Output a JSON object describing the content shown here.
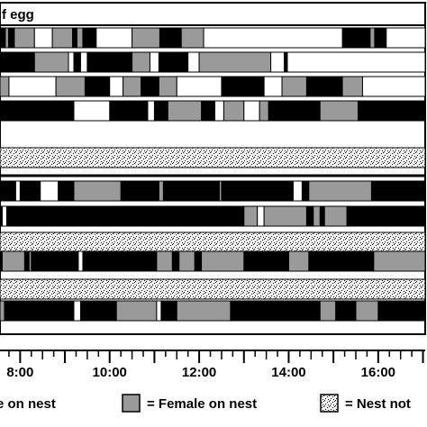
{
  "header_text": "f egg",
  "legend": {
    "male_label": "e on nest",
    "female_label": "= Female on nest",
    "empty_label": "= Nest not"
  },
  "colors": {
    "male": "#000000",
    "female": "#9a9a9a",
    "empty": "#dedede",
    "unattended": "#ffffff"
  },
  "chart_data": {
    "type": "timeline",
    "title": "",
    "x_unit": "hour",
    "xlim": [
      7.55,
      17.05
    ],
    "x_ticks": [
      {
        "hour": 8,
        "label": "8:00"
      },
      {
        "hour": 10,
        "label": "10:00"
      },
      {
        "hour": 12,
        "label": "12:00"
      },
      {
        "hour": 14,
        "label": "14:00"
      },
      {
        "hour": 16,
        "label": "16:00"
      }
    ],
    "states": [
      "male",
      "female",
      "unattended",
      "empty"
    ],
    "rows": [
      {
        "segments": [
          [
            "male",
            7.55,
            7.67
          ],
          [
            "female",
            7.67,
            7.74
          ],
          [
            "male",
            7.74,
            7.8
          ],
          [
            "female",
            7.8,
            7.82
          ],
          [
            "male",
            7.82,
            7.87
          ],
          [
            "female",
            7.87,
            8.32
          ],
          [
            "unattended",
            8.32,
            8.72
          ],
          [
            "female",
            8.72,
            9.17
          ],
          [
            "male",
            9.17,
            9.27
          ],
          [
            "female",
            9.27,
            9.4
          ],
          [
            "male",
            9.4,
            9.7
          ],
          [
            "unattended",
            9.7,
            10.5
          ],
          [
            "female",
            10.5,
            11.12
          ],
          [
            "male",
            11.12,
            11.6
          ],
          [
            "female",
            11.6,
            12.1
          ],
          [
            "unattended",
            12.1,
            15.2
          ],
          [
            "male",
            15.2,
            15.82
          ],
          [
            "female",
            15.82,
            15.92
          ],
          [
            "male",
            15.92,
            16.18
          ],
          [
            "unattended",
            16.18,
            17.05
          ]
        ]
      },
      {
        "segments": [
          [
            "male",
            7.55,
            8.32
          ],
          [
            "female",
            8.32,
            9.08
          ],
          [
            "unattended",
            9.08,
            9.2
          ],
          [
            "male",
            9.2,
            9.35
          ],
          [
            "unattended",
            9.35,
            9.5
          ],
          [
            "male",
            9.5,
            10.5
          ],
          [
            "female",
            10.5,
            10.9
          ],
          [
            "unattended",
            10.9,
            11.1
          ],
          [
            "male",
            11.1,
            11.75
          ],
          [
            "unattended",
            11.75,
            12.0
          ],
          [
            "female",
            12.0,
            13.6
          ],
          [
            "unattended",
            13.6,
            13.9
          ],
          [
            "male",
            13.9,
            13.97
          ],
          [
            "unattended",
            13.97,
            17.05
          ]
        ]
      },
      {
        "segments": [
          [
            "female",
            7.55,
            7.75
          ],
          [
            "unattended",
            7.75,
            8.8
          ],
          [
            "female",
            8.8,
            9.45
          ],
          [
            "male",
            9.45,
            10.0
          ],
          [
            "unattended",
            10.0,
            10.3
          ],
          [
            "female",
            10.3,
            10.7
          ],
          [
            "male",
            10.7,
            11.1
          ],
          [
            "female",
            11.1,
            11.5
          ],
          [
            "unattended",
            11.5,
            12.5
          ],
          [
            "male",
            12.5,
            13.45
          ],
          [
            "unattended",
            13.45,
            13.85
          ],
          [
            "female",
            13.85,
            14.4
          ],
          [
            "male",
            14.4,
            15.2
          ],
          [
            "female",
            15.2,
            15.65
          ],
          [
            "unattended",
            15.65,
            17.05
          ]
        ]
      },
      {
        "segments": [
          [
            "male",
            7.55,
            9.2
          ],
          [
            "unattended",
            9.2,
            10.0
          ],
          [
            "male",
            10.0,
            10.85
          ],
          [
            "unattended",
            10.85,
            11.0
          ],
          [
            "male",
            11.0,
            11.3
          ],
          [
            "female",
            11.3,
            12.05
          ],
          [
            "male",
            12.05,
            12.35
          ],
          [
            "unattended",
            12.35,
            12.55
          ],
          [
            "female",
            12.55,
            13.0
          ],
          [
            "unattended",
            13.0,
            13.35
          ],
          [
            "female",
            13.35,
            13.55
          ],
          [
            "male",
            13.55,
            14.7
          ],
          [
            "female",
            14.7,
            15.55
          ],
          [
            "male",
            15.55,
            17.05
          ]
        ]
      },
      {
        "segments": [
          [
            "empty",
            7.55,
            17.05
          ]
        ]
      },
      {
        "segments": [
          [
            "male",
            7.55,
            7.9
          ],
          [
            "unattended",
            7.9,
            8.0
          ],
          [
            "male",
            8.0,
            8.45
          ],
          [
            "unattended",
            8.45,
            8.85
          ],
          [
            "male",
            8.85,
            9.2
          ],
          [
            "female",
            9.2,
            10.25
          ],
          [
            "male",
            10.25,
            11.1
          ],
          [
            "female",
            11.1,
            11.2
          ],
          [
            "male",
            11.2,
            12.45
          ],
          [
            "female",
            12.45,
            12.5
          ],
          [
            "male",
            12.5,
            14.1
          ],
          [
            "unattended",
            14.1,
            14.3
          ],
          [
            "male",
            14.3,
            14.45
          ],
          [
            "female",
            14.45,
            15.85
          ],
          [
            "male",
            15.85,
            17.05
          ]
        ]
      },
      {
        "segments": [
          [
            "male",
            7.55,
            7.6
          ],
          [
            "unattended",
            7.6,
            7.7
          ],
          [
            "male",
            7.7,
            13.0
          ],
          [
            "female",
            13.0,
            13.3
          ],
          [
            "unattended",
            13.3,
            13.45
          ],
          [
            "female",
            13.45,
            14.4
          ],
          [
            "male",
            14.4,
            14.55
          ],
          [
            "female",
            14.55,
            14.7
          ],
          [
            "male",
            14.7,
            14.8
          ],
          [
            "female",
            14.8,
            15.3
          ],
          [
            "male",
            15.3,
            17.05
          ]
        ]
      },
      {
        "segments": [
          [
            "empty",
            7.55,
            17.05
          ]
        ]
      },
      {
        "segments": [
          [
            "male",
            7.55,
            7.6
          ],
          [
            "female",
            7.6,
            8.1
          ],
          [
            "male",
            8.1,
            8.2
          ],
          [
            "female",
            8.2,
            8.25
          ],
          [
            "male",
            8.25,
            9.3
          ],
          [
            "unattended",
            9.3,
            9.4
          ],
          [
            "male",
            9.4,
            11.05
          ],
          [
            "female",
            11.05,
            11.4
          ],
          [
            "male",
            11.4,
            11.55
          ],
          [
            "female",
            11.55,
            11.9
          ],
          [
            "male",
            11.9,
            12.05
          ],
          [
            "female",
            12.05,
            13.0
          ],
          [
            "male",
            13.0,
            14.0
          ],
          [
            "female",
            14.0,
            14.45
          ],
          [
            "male",
            14.45,
            15.9
          ],
          [
            "female",
            15.9,
            17.05
          ]
        ]
      },
      {
        "segments": [
          [
            "empty",
            7.55,
            17.05
          ]
        ]
      },
      {
        "segments": [
          [
            "female",
            7.55,
            7.65
          ],
          [
            "male",
            7.65,
            9.2
          ],
          [
            "unattended",
            9.2,
            9.35
          ],
          [
            "male",
            9.35,
            10.15
          ],
          [
            "female",
            10.15,
            11.05
          ],
          [
            "unattended",
            11.05,
            11.15
          ],
          [
            "male",
            11.15,
            11.5
          ],
          [
            "female",
            11.5,
            12.7
          ],
          [
            "male",
            12.7,
            14.7
          ],
          [
            "female",
            14.7,
            15.05
          ],
          [
            "male",
            15.05,
            15.5
          ],
          [
            "female",
            15.5,
            16.0
          ],
          [
            "male",
            16.0,
            17.05
          ]
        ]
      }
    ]
  }
}
